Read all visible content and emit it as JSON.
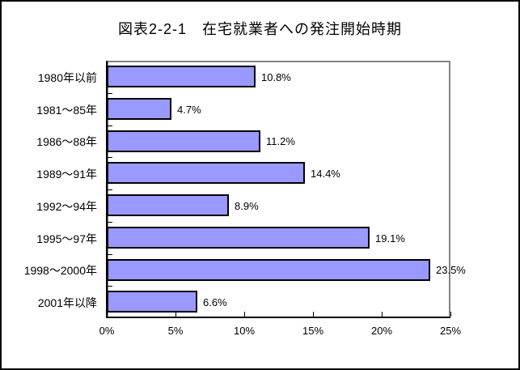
{
  "window": {
    "background": "#FFFFFF",
    "frame_border_color": "#000000"
  },
  "chart_data": {
    "type": "bar",
    "orientation": "horizontal",
    "title": "図表2-2-1　在宅就業者への発注開始時期",
    "categories": [
      "1980年以前",
      "1981〜85年",
      "1986〜88年",
      "1989〜91年",
      "1992〜94年",
      "1995〜97年",
      "1998〜2000年",
      "2001年以降"
    ],
    "values": [
      10.8,
      4.7,
      11.2,
      14.4,
      8.9,
      19.1,
      23.5,
      6.6
    ],
    "value_labels": [
      "10.8%",
      "4.7%",
      "11.2%",
      "14.4%",
      "8.9%",
      "19.1%",
      "23.5%",
      "6.6%"
    ],
    "xlabel": "",
    "ylabel": "",
    "xlim": [
      0,
      25
    ],
    "x_ticks": [
      0,
      5,
      10,
      15,
      20,
      25
    ],
    "x_tick_labels": [
      "0%",
      "5%",
      "10%",
      "15%",
      "20%",
      "25%"
    ],
    "grid": false,
    "legend": false,
    "bar_fill_color": "#9999FF",
    "bar_border_color": "#000000",
    "plot_border_color": "#848284",
    "axis_color": "#000000",
    "tick_style": "inside"
  }
}
